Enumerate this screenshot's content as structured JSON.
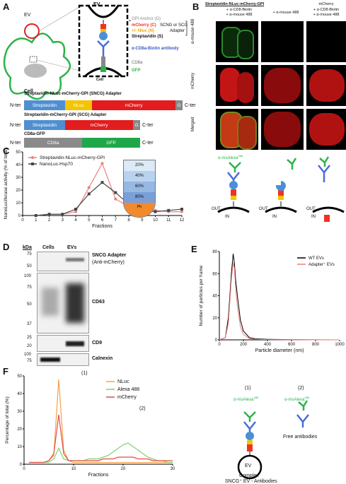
{
  "panels": {
    "A": "A",
    "B": "B",
    "C": "C",
    "D": "D",
    "E": "E",
    "F": "F"
  },
  "A": {
    "ev": "EV",
    "cell": "Cell",
    "cell_small": "Cell",
    "gpi": "GPI Anchor (G)",
    "mcherry": "mCherry (C)",
    "nluc": "+/- Nluc (N)",
    "strep": "Streptavidin (S)",
    "adapter": "SCNG or SCG",
    "adapter2": "Adapter",
    "antibody": "α-CD8a-Biotin antibody",
    "cd8a": "CD8a",
    "gfp": "GFP",
    "constructs": [
      {
        "title": "Streptavidin-NLuc-mCherry-GPI (SNCG) Adapter",
        "segments": [
          "Streptavidin",
          "NLuc",
          "mCherry",
          "G"
        ]
      },
      {
        "title": "Streptavidin-mCherry-GPI (SCG) Adapter",
        "segments": [
          "Streptavidin",
          "mCherry",
          "G"
        ]
      },
      {
        "title": "CD8a-GFP",
        "segments": [
          "CD8a",
          "GFP"
        ]
      }
    ],
    "nter": "N-ter",
    "cter": "C-ter"
  },
  "B": {
    "col1_title": "Streptavidin-NLuc-mCherry-GPI",
    "col1_sub": "+ α-CD8-Biotin\n+ α-mouse 488",
    "col2_sub": "+ α-mouse 488",
    "col3_title": "mCherry",
    "col3_sub": "+ α-CD8-Biotin\n+ α-mouse 488",
    "rows": [
      "α-mouse 488",
      "mCherry",
      "Merged"
    ],
    "ab_label": "α-msAlexa",
    "ab_sup": "488",
    "out": "OUT",
    "in": "IN"
  },
  "C": {
    "ylabel": "NanoLuciferase activity (% of total)",
    "xlabel": "Fractions",
    "gradient": [
      "20%",
      "40%",
      "60%",
      "80%",
      "Ph"
    ]
  },
  "D": {
    "kda": "kDa",
    "cells": "Cells",
    "evs": "EVs",
    "rows": [
      {
        "label": "SNCG Adapter",
        "sub": "(Anti-mCherry)",
        "markers": [
          "75",
          "50"
        ]
      },
      {
        "label": "CD63",
        "sub": "",
        "markers": [
          "100",
          "75",
          "50",
          "37"
        ]
      },
      {
        "label": "CD9",
        "sub": "",
        "markers": [
          "25",
          "20"
        ]
      },
      {
        "label": "Calnexin",
        "sub": "",
        "markers": [
          "100",
          "75"
        ]
      }
    ]
  },
  "E": {
    "ylabel": "Number of particles per frame",
    "xlabel": "Particle diameter (nm)"
  },
  "F": {
    "ylabel": "Percentage of total (%)",
    "xlabel": "Fractions",
    "peak1": "(1)",
    "peak2": "(2)",
    "diag1": "(1)",
    "diag2": "(2)",
    "ab1": "α-msAlexa",
    "ab2": "α-msAlexa",
    "sup": "488",
    "ev": "EV",
    "free": "Free antibodies",
    "complex": "Complex",
    "complex2": "SNCG⁺ EV - Antibodies"
  },
  "chart_data": [
    {
      "type": "line",
      "panel": "C",
      "x": [
        1,
        2,
        3,
        4,
        5,
        6,
        7,
        8,
        9,
        10,
        11,
        12
      ],
      "series": [
        {
          "name": "Streptavidin-NLuc-mCherry-GPI",
          "color": "#f07f7f",
          "values": [
            0,
            1,
            1,
            3,
            22,
            41,
            13,
            7,
            5,
            4,
            3,
            3
          ]
        },
        {
          "name": "NanoLuc-Hsp70",
          "color": "#444444",
          "values": [
            0,
            1,
            1,
            5,
            17,
            26,
            18,
            9,
            4,
            3,
            4,
            5
          ]
        }
      ],
      "xlabel": "Fractions",
      "ylabel": "NanoLuciferase activity (% of total)",
      "xlim": [
        0,
        12
      ],
      "ylim": [
        0,
        50
      ],
      "xticks": [
        0,
        1,
        2,
        3,
        4,
        5,
        6,
        7,
        8,
        9,
        10,
        11,
        12
      ],
      "yticks": [
        0,
        10,
        20,
        30,
        40,
        50
      ]
    },
    {
      "type": "line",
      "panel": "E",
      "series": [
        {
          "name": "WT EVs",
          "color": "#000000",
          "x": [
            0,
            50,
            75,
            100,
            115,
            125,
            135,
            150,
            175,
            200,
            250,
            300,
            400,
            600,
            800,
            1000
          ],
          "values": [
            0,
            2,
            20,
            60,
            78,
            70,
            55,
            40,
            18,
            8,
            2,
            1,
            0.5,
            0.2,
            0.1,
            0
          ]
        },
        {
          "name": "Adapter⁺ EVs",
          "color": "#f07f7f",
          "x": [
            0,
            50,
            75,
            100,
            115,
            125,
            135,
            150,
            175,
            200,
            250,
            300,
            400,
            600,
            800,
            1000
          ],
          "values": [
            0,
            2,
            15,
            55,
            70,
            65,
            48,
            30,
            12,
            5,
            1,
            0.5,
            0.2,
            0.1,
            0,
            0
          ]
        }
      ],
      "xlabel": "Particle diameter (nm)",
      "ylabel": "Number of particles per frame",
      "xlim": [
        0,
        1000
      ],
      "ylim": [
        0,
        80
      ],
      "xticks": [
        0,
        200,
        400,
        600,
        800,
        1000
      ],
      "yticks": [
        0,
        20,
        40,
        60,
        80
      ]
    },
    {
      "type": "line",
      "panel": "F",
      "x": [
        1,
        2,
        3,
        4,
        5,
        6,
        7,
        8,
        9,
        10,
        11,
        12,
        13,
        14,
        15,
        16,
        17,
        18,
        19,
        20,
        21,
        22,
        23,
        24,
        25,
        26,
        27,
        28,
        29,
        30
      ],
      "series": [
        {
          "name": "NLuc",
          "color": "#f5a24a",
          "values": [
            1,
            1,
            1,
            1,
            2,
            5,
            48,
            8,
            2,
            1,
            1,
            1,
            1,
            1,
            1,
            1,
            1,
            1,
            1,
            1,
            1,
            1,
            1,
            1,
            1,
            1,
            1,
            1,
            1,
            1
          ]
        },
        {
          "name": "Alexa 488",
          "color": "#7bd46b",
          "values": [
            1,
            1,
            1,
            1,
            1,
            3,
            9,
            3,
            2,
            2,
            2,
            2,
            3,
            3,
            3,
            4,
            5,
            7,
            9,
            11,
            12,
            10,
            8,
            6,
            4,
            3,
            2,
            2,
            1,
            1
          ]
        },
        {
          "name": "mCherry",
          "color": "#e34b4b",
          "values": [
            1,
            1,
            1,
            1,
            2,
            6,
            28,
            6,
            2,
            2,
            2,
            2,
            2,
            2,
            2,
            3,
            3,
            3,
            4,
            4,
            4,
            4,
            3,
            3,
            3,
            2,
            2,
            2,
            2,
            2
          ]
        }
      ],
      "xlabel": "Fractions",
      "ylabel": "Percentage of total (%)",
      "xlim": [
        0,
        30
      ],
      "ylim": [
        0,
        50
      ],
      "xticks": [
        0,
        10,
        20,
        30
      ],
      "yticks": [
        0,
        10,
        20,
        30,
        40,
        50
      ]
    }
  ]
}
